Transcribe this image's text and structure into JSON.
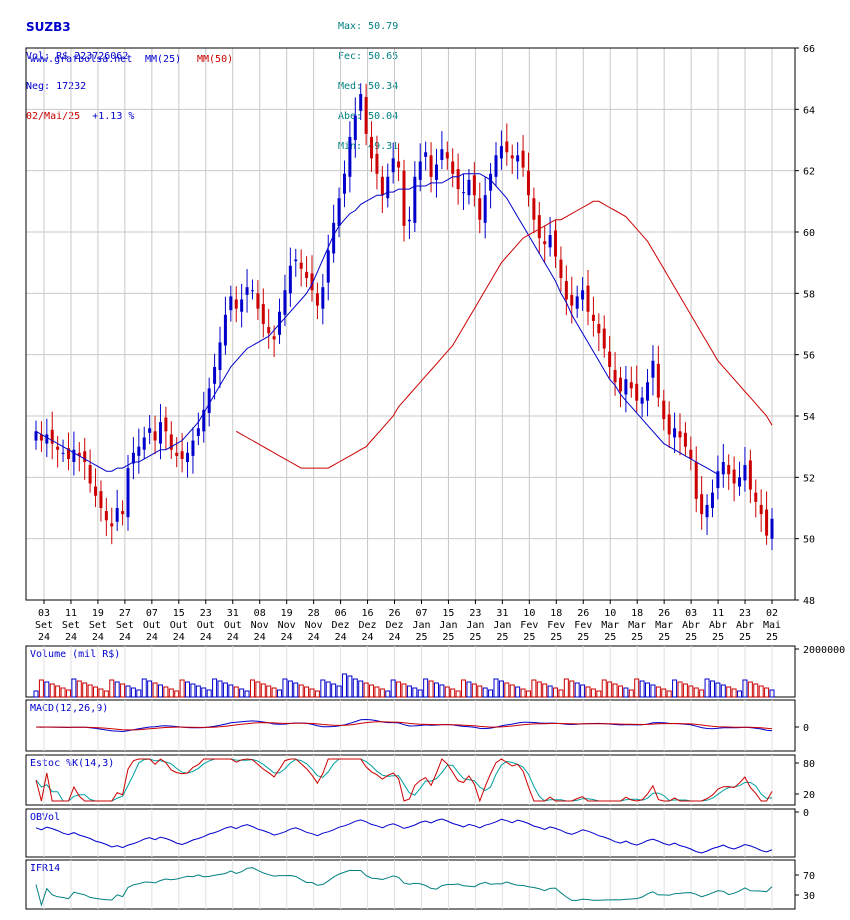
{
  "header": {
    "ticker": "SUZB3",
    "vol": "Vol: R$ 223726062",
    "neg": "Neg: 17232",
    "date": "02/Mai/25",
    "change": "+1.13 %",
    "stats": [
      {
        "label": "Max:",
        "value": "50.79"
      },
      {
        "label": "Fec:",
        "value": "50.65"
      },
      {
        "label": "Med:",
        "value": "50.34"
      },
      {
        "label": "Abe:",
        "value": "50.04"
      },
      {
        "label": "Min:",
        "value": "49.31"
      }
    ]
  },
  "colors": {
    "up": "#0000cc",
    "down": "#cc0000",
    "ma25": "#0000cc",
    "ma50": "#cc0000",
    "stoch_d": "#00a0a0",
    "ifr": "#008080",
    "axis": "#000000",
    "grid": "#c8c8c8"
  },
  "chart_data": [
    {
      "type": "candlestick",
      "legend": [
        "www.grafbolsa.net",
        "MM(25)",
        "MM(50)"
      ],
      "ylim": [
        48,
        66
      ],
      "yticks": [
        "48",
        "50",
        "52",
        "54",
        "56",
        "58",
        "60",
        "62",
        "64",
        "66"
      ],
      "x_labels": [
        [
          "03",
          "Set",
          "24"
        ],
        [
          "11",
          "Set",
          "24"
        ],
        [
          "19",
          "Set",
          "24"
        ],
        [
          "27",
          "Set",
          "24"
        ],
        [
          "07",
          "Out",
          "24"
        ],
        [
          "15",
          "Out",
          "24"
        ],
        [
          "23",
          "Out",
          "24"
        ],
        [
          "31",
          "Out",
          "24"
        ],
        [
          "08",
          "Nov",
          "24"
        ],
        [
          "19",
          "Nov",
          "24"
        ],
        [
          "28",
          "Nov",
          "24"
        ],
        [
          "06",
          "Dez",
          "24"
        ],
        [
          "16",
          "Dez",
          "24"
        ],
        [
          "26",
          "Dez",
          "24"
        ],
        [
          "07",
          "Jan",
          "25"
        ],
        [
          "15",
          "Jan",
          "25"
        ],
        [
          "23",
          "Jan",
          "25"
        ],
        [
          "31",
          "Jan",
          "25"
        ],
        [
          "10",
          "Fev",
          "25"
        ],
        [
          "18",
          "Fev",
          "25"
        ],
        [
          "26",
          "Fev",
          "25"
        ],
        [
          "10",
          "Mar",
          "25"
        ],
        [
          "18",
          "Mar",
          "25"
        ],
        [
          "26",
          "Mar",
          "25"
        ],
        [
          "03",
          "Abr",
          "25"
        ],
        [
          "11",
          "Abr",
          "25"
        ],
        [
          "23",
          "Abr",
          "25"
        ],
        [
          "02",
          "Mai",
          "25"
        ]
      ],
      "close": [
        53.5,
        53.2,
        53.4,
        53.1,
        52.9,
        52.8,
        52.6,
        52.9,
        52.7,
        52.5,
        51.8,
        51.4,
        51.0,
        50.6,
        50.4,
        51.0,
        50.8,
        52.3,
        52.8,
        53.0,
        53.3,
        53.6,
        53.2,
        53.8,
        53.5,
        52.9,
        52.7,
        52.6,
        52.8,
        53.2,
        53.6,
        54.2,
        54.9,
        55.6,
        56.4,
        57.3,
        57.9,
        57.5,
        57.8,
        58.2,
        58.1,
        57.5,
        57.0,
        56.7,
        56.5,
        57.4,
        58.1,
        58.9,
        59.1,
        58.8,
        58.5,
        58.1,
        57.6,
        58.2,
        59.4,
        60.3,
        61.1,
        61.9,
        63.1,
        63.8,
        64.5,
        63.2,
        62.4,
        61.9,
        61.2,
        61.8,
        62.4,
        62.1,
        60.2,
        60.4,
        61.8,
        62.3,
        62.6,
        61.8,
        62.2,
        62.7,
        62.4,
        61.9,
        61.4,
        61.3,
        61.7,
        61.2,
        60.4,
        61.2,
        61.9,
        62.5,
        62.8,
        62.6,
        62.4,
        62.5,
        62.1,
        61.2,
        60.4,
        59.8,
        59.6,
        59.9,
        59.2,
        58.5,
        57.8,
        57.6,
        57.9,
        58.1,
        57.4,
        57.1,
        56.7,
        56.2,
        55.6,
        55.1,
        54.8,
        55.2,
        54.9,
        54.5,
        54.6,
        55.1,
        55.8,
        54.6,
        53.9,
        53.4,
        53.6,
        53.3,
        53.0,
        52.6,
        51.3,
        50.8,
        51.1,
        51.5,
        52.2,
        52.5,
        52.1,
        51.8,
        52.0,
        52.4,
        51.6,
        51.2,
        50.8,
        50.1,
        50.65
      ],
      "ma25": [
        53.5,
        53.4,
        53.3,
        53.2,
        53.1,
        53.0,
        52.9,
        52.8,
        52.7,
        52.6,
        52.5,
        52.4,
        52.3,
        52.2,
        52.2,
        52.3,
        52.3,
        52.4,
        52.5,
        52.5,
        52.6,
        52.7,
        52.8,
        52.9,
        52.9,
        53.0,
        53.1,
        53.2,
        53.4,
        53.6,
        53.8,
        54.1,
        54.4,
        54.7,
        55.0,
        55.3,
        55.6,
        55.8,
        56.0,
        56.2,
        56.3,
        56.4,
        56.5,
        56.6,
        56.8,
        57.0,
        57.2,
        57.4,
        57.6,
        57.8,
        58.0,
        58.3,
        58.7,
        59.1,
        59.5,
        59.9,
        60.2,
        60.4,
        60.6,
        60.7,
        60.9,
        61.0,
        61.1,
        61.2,
        61.2,
        61.3,
        61.3,
        61.4,
        61.4,
        61.4,
        61.5,
        61.5,
        61.5,
        61.6,
        61.6,
        61.6,
        61.7,
        61.8,
        61.8,
        61.9,
        61.9,
        61.9,
        61.9,
        61.8,
        61.7,
        61.5,
        61.3,
        61.1,
        60.8,
        60.5,
        60.2,
        59.9,
        59.6,
        59.3,
        59.0,
        58.7,
        58.4,
        58.0,
        57.7,
        57.3,
        57.0,
        56.7,
        56.4,
        56.1,
        55.8,
        55.5,
        55.2,
        55.0,
        54.7,
        54.5,
        54.3,
        54.1,
        53.9,
        53.7,
        53.5,
        53.3,
        53.1,
        53.0,
        52.9,
        52.8,
        52.7,
        52.6,
        52.5,
        52.4,
        52.3,
        52.2,
        52.1
      ],
      "ma50": [
        53.5,
        53.4,
        53.3,
        53.2,
        53.1,
        53.0,
        52.9,
        52.8,
        52.7,
        52.6,
        52.5,
        52.4,
        52.3,
        52.3,
        52.3,
        52.3,
        52.3,
        52.3,
        52.4,
        52.5,
        52.6,
        52.7,
        52.8,
        52.9,
        53.0,
        53.2,
        53.4,
        53.6,
        53.8,
        54.0,
        54.3,
        54.5,
        54.7,
        54.9,
        55.1,
        55.3,
        55.5,
        55.7,
        55.9,
        56.1,
        56.3,
        56.6,
        56.9,
        57.2,
        57.5,
        57.8,
        58.1,
        58.4,
        58.7,
        59.0,
        59.2,
        59.4,
        59.6,
        59.8,
        59.9,
        60.0,
        60.1,
        60.2,
        60.3,
        60.4,
        60.4,
        60.5,
        60.6,
        60.7,
        60.8,
        60.9,
        61.0,
        61.0,
        60.9,
        60.8,
        60.7,
        60.6,
        60.5,
        60.3,
        60.1,
        59.9,
        59.7,
        59.4,
        59.1,
        58.8,
        58.5,
        58.2,
        57.9,
        57.6,
        57.3,
        57.0,
        56.7,
        56.4,
        56.1,
        55.8,
        55.6,
        55.4,
        55.2,
        55.0,
        54.8,
        54.6,
        54.4,
        54.2,
        54.0,
        53.7
      ],
      "ma50_start": 37
    },
    {
      "type": "bar",
      "label": "Volume (mil R$)",
      "yticks": [
        "2000000"
      ],
      "ylim": [
        0,
        2000000
      ]
    },
    {
      "type": "line",
      "label": "MACD(12,26,9)",
      "yticks": [
        "0"
      ]
    },
    {
      "type": "line",
      "label": "Estoc %K(14,3)",
      "yticks": [
        "80",
        "20"
      ]
    },
    {
      "type": "line",
      "label": "OBVol",
      "yticks": [
        "0"
      ]
    },
    {
      "type": "line",
      "label": "IFR14",
      "yticks": [
        "70",
        "30"
      ]
    }
  ]
}
